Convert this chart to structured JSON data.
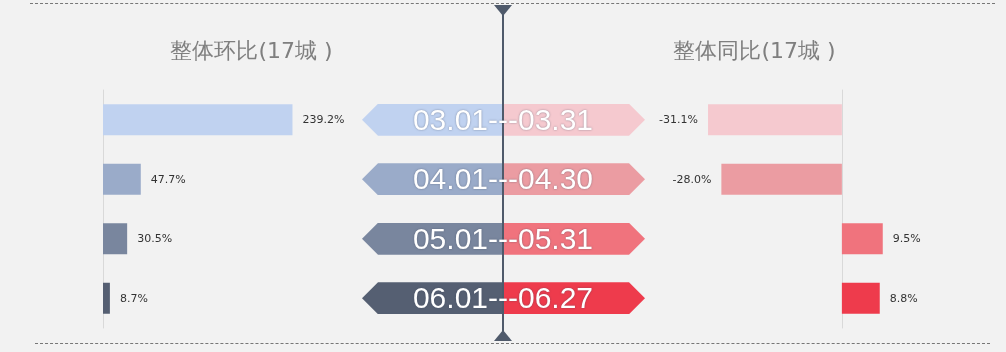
{
  "chart_data": [
    {
      "type": "bar",
      "orientation": "horizontal",
      "title": "整体环比(17城 )",
      "categories": [
        "03.01---03.31",
        "04.01---04.30",
        "05.01---05.31",
        "06.01---06.27"
      ],
      "values": [
        239.2,
        47.7,
        30.5,
        8.7
      ],
      "colors": [
        "#c0d2f0",
        "#9aabc9",
        "#79869e",
        "#555f72"
      ],
      "value_labels": [
        "239.2%",
        "47.7%",
        "30.5%",
        "8.7%"
      ]
    },
    {
      "type": "bar",
      "orientation": "horizontal",
      "title": "整体同比(17城 )",
      "categories": [
        null,
        null,
        null,
        null
      ],
      "values": [
        -31.1,
        -28.0,
        9.5,
        8.8
      ],
      "colors": [
        "#f5c9cf",
        "#eb9ca2",
        "#f0737d",
        "#ee3b4c"
      ],
      "value_labels": [
        "-31.1%",
        "-28.0%",
        "9.5%",
        "8.8%"
      ]
    }
  ]
}
